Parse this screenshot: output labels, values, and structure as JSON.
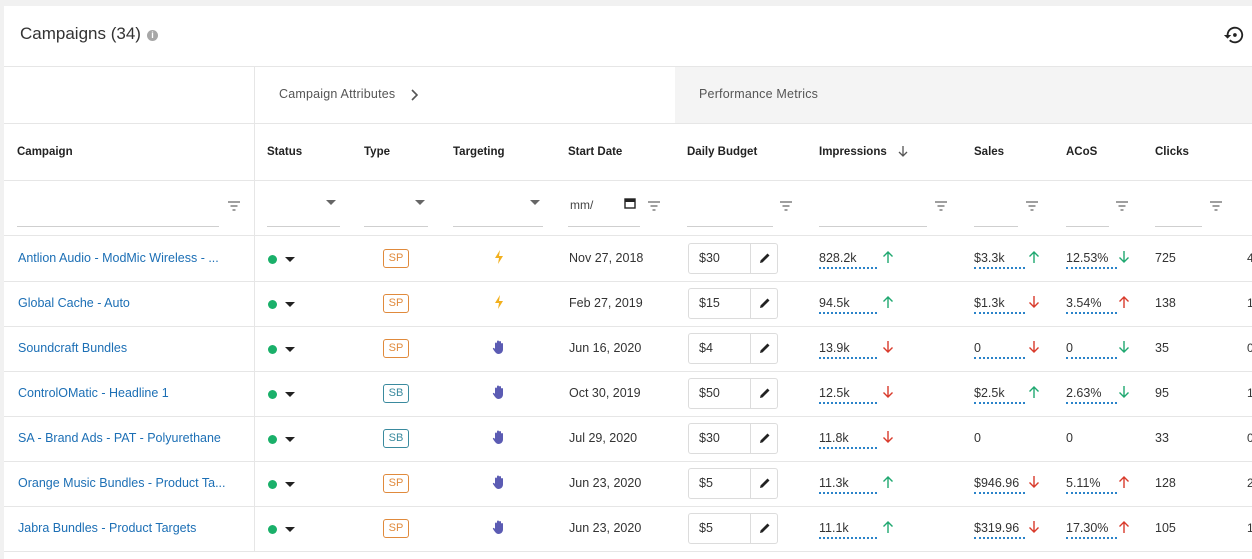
{
  "header": {
    "title": "Campaigns (34)",
    "info_icon": "info-icon",
    "history_icon": "history-icon"
  },
  "groups": {
    "attributes": "Campaign Attributes",
    "performance": "Performance Metrics"
  },
  "columns": {
    "campaign": "Campaign",
    "status": "Status",
    "type": "Type",
    "targeting": "Targeting",
    "start_date": "Start Date",
    "daily_budget": "Daily Budget",
    "impressions": "Impressions",
    "sales": "Sales",
    "acos": "ACoS",
    "clicks": "Clicks"
  },
  "filters": {
    "date_placeholder": "mm/"
  },
  "colors": {
    "link": "#1c6fb5",
    "status_active": "#1ab06a",
    "sp": "#e08a3c",
    "sb": "#3a8a9e",
    "up": "#1fa870",
    "down": "#d93a2b",
    "auto_icon": "#f2b01e",
    "manual_icon": "#5b5bb3"
  },
  "rows": [
    {
      "campaign": "Antlion Audio - ModMic Wireless - ...",
      "type": "SP",
      "targeting": "lightning-icon",
      "start_date": "Nov 27, 2018",
      "budget": "$30",
      "impressions": "828.2k",
      "impr_trend": "up",
      "sales": "$3.3k",
      "sales_trend": "up",
      "acos": "12.53%",
      "acos_trend": "down-good",
      "clicks": "725",
      "edge": "4"
    },
    {
      "campaign": "Global Cache - Auto",
      "type": "SP",
      "targeting": "lightning-icon",
      "start_date": "Feb 27, 2019",
      "budget": "$15",
      "impressions": "94.5k",
      "impr_trend": "up",
      "sales": "$1.3k",
      "sales_trend": "down",
      "acos": "3.54%",
      "acos_trend": "up-bad",
      "clicks": "138",
      "edge": "1"
    },
    {
      "campaign": "Soundcraft Bundles",
      "type": "SP",
      "targeting": "hand-icon",
      "start_date": "Jun 16, 2020",
      "budget": "$4",
      "impressions": "13.9k",
      "impr_trend": "down",
      "sales": "0",
      "sales_trend": "down",
      "acos": "0",
      "acos_trend": "down-good",
      "clicks": "35",
      "edge": "0"
    },
    {
      "campaign": "ControlOMatic - Headline 1",
      "type": "SB",
      "targeting": "hand-icon",
      "start_date": "Oct 30, 2019",
      "budget": "$50",
      "impressions": "12.5k",
      "impr_trend": "down",
      "sales": "$2.5k",
      "sales_trend": "up",
      "acos": "2.63%",
      "acos_trend": "down-good",
      "clicks": "95",
      "edge": "1"
    },
    {
      "campaign": "SA - Brand Ads - PAT - Polyurethane",
      "type": "SB",
      "targeting": "hand-icon",
      "start_date": "Jul 29, 2020",
      "budget": "$30",
      "impressions": "11.8k",
      "impr_trend": "down",
      "sales": "0",
      "sales_trend": "none",
      "acos": "0",
      "acos_trend": "none",
      "clicks": "33",
      "edge": "0"
    },
    {
      "campaign": "Orange Music Bundles - Product Ta...",
      "type": "SP",
      "targeting": "hand-icon",
      "start_date": "Jun 23, 2020",
      "budget": "$5",
      "impressions": "11.3k",
      "impr_trend": "up",
      "sales": "$946.96",
      "sales_trend": "down",
      "acos": "5.11%",
      "acos_trend": "up-bad",
      "clicks": "128",
      "edge": "2"
    },
    {
      "campaign": "Jabra Bundles - Product Targets",
      "type": "SP",
      "targeting": "hand-icon",
      "start_date": "Jun 23, 2020",
      "budget": "$5",
      "impressions": "11.1k",
      "impr_trend": "up",
      "sales": "$319.96",
      "sales_trend": "down",
      "acos": "17.30%",
      "acos_trend": "up-bad",
      "clicks": "105",
      "edge": "1"
    }
  ]
}
